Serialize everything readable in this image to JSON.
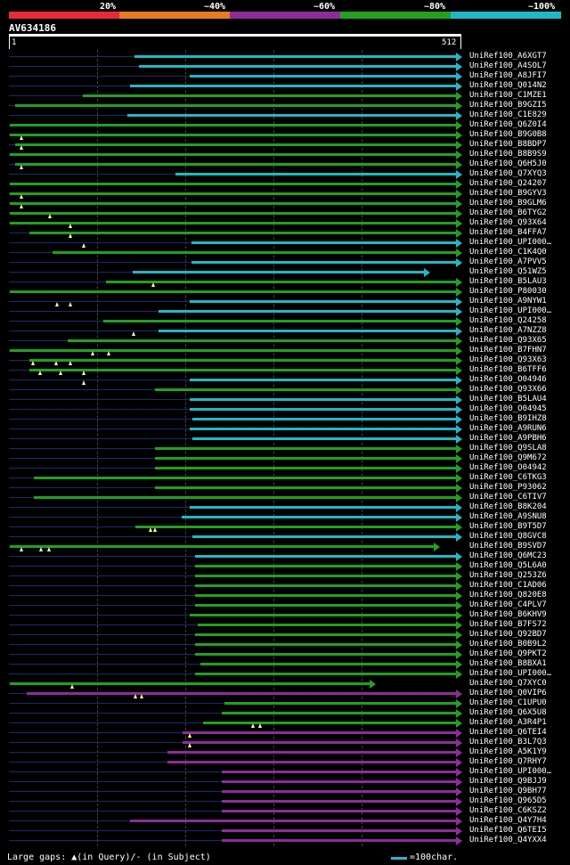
{
  "legend": {
    "labels": [
      "20%",
      "~40%",
      "~60%",
      "~80%",
      "~100%"
    ],
    "colors": [
      "#e8283c",
      "#e67a1e",
      "#8e2c9a",
      "#22a020",
      "#20b8c8"
    ]
  },
  "query": {
    "id": "AV634186",
    "start": "1",
    "end": "512",
    "length": 512
  },
  "footer": {
    "gaps": "Large gaps: ▲(in Query)/- (in Subject)",
    "scale": "=100char."
  },
  "hits": [
    {
      "label": "UniRef100_A6XGT7",
      "color": "#20b8c8",
      "start": 145,
      "end": 512,
      "tris": []
    },
    {
      "label": "UniRef100_A4SOL7",
      "color": "#20b8c8",
      "start": 150,
      "end": 512,
      "tris": []
    },
    {
      "label": "UniRef100_A8JFI7",
      "color": "#20b8c8",
      "start": 208,
      "end": 512,
      "tris": []
    },
    {
      "label": "UniRef100_Q014N2",
      "color": "#20b8c8",
      "start": 139,
      "end": 512,
      "tris": []
    },
    {
      "label": "UniRef100_C1MZE1",
      "color": "#22a020",
      "start": 85,
      "end": 512,
      "tris": []
    },
    {
      "label": "UniRef100_B9GZI5",
      "color": "#22a020",
      "start": 8,
      "end": 512,
      "tris": []
    },
    {
      "label": "UniRef100_C1E829",
      "color": "#20b8c8",
      "start": 136,
      "end": 512,
      "tris": []
    },
    {
      "label": "UniRef100_Q6Z0I4",
      "color": "#22a020",
      "start": 2,
      "end": 512,
      "tris": []
    },
    {
      "label": "UniRef100_B9G0B8",
      "color": "#22a020",
      "start": 2,
      "end": 512,
      "tris": [
        15
      ]
    },
    {
      "label": "UniRef100_B8BDP7",
      "color": "#22a020",
      "start": 8,
      "end": 512,
      "tris": [
        15
      ]
    },
    {
      "label": "UniRef100_B8B9S9",
      "color": "#22a020",
      "start": 2,
      "end": 512,
      "tris": []
    },
    {
      "label": "UniRef100_Q6H5J0",
      "color": "#22a020",
      "start": 8,
      "end": 512,
      "tris": [
        15
      ]
    },
    {
      "label": "UniRef100_Q7XYQ3",
      "color": "#20b8c8",
      "start": 191,
      "end": 512,
      "tris": []
    },
    {
      "label": "UniRef100_Q24207",
      "color": "#22a020",
      "start": 2,
      "end": 512,
      "tris": []
    },
    {
      "label": "UniRef100_B9GYV3",
      "color": "#22a020",
      "start": 2,
      "end": 512,
      "tris": [
        15
      ]
    },
    {
      "label": "UniRef100_B9GLM6",
      "color": "#22a020",
      "start": 2,
      "end": 512,
      "tris": [
        15
      ]
    },
    {
      "label": "UniRef100_B6TYG2",
      "color": "#22a020",
      "start": 2,
      "end": 512,
      "tris": [
        48
      ]
    },
    {
      "label": "UniRef100_Q93X64",
      "color": "#22a020",
      "start": 2,
      "end": 512,
      "tris": [
        71
      ]
    },
    {
      "label": "UniRef100_B4FFA7",
      "color": "#22a020",
      "start": 24,
      "end": 512,
      "tris": [
        71
      ]
    },
    {
      "label": "UniRef100_UPI000…",
      "color": "#20b8c8",
      "start": 210,
      "end": 512,
      "tris": [
        87
      ]
    },
    {
      "label": "UniRef100_C1K4Q0",
      "color": "#22a020",
      "start": 51,
      "end": 512,
      "tris": []
    },
    {
      "label": "UniRef100_A7PVV5",
      "color": "#20b8c8",
      "start": 210,
      "end": 512,
      "tris": []
    },
    {
      "label": "UniRef100_Q51WZ5",
      "color": "#20b8c8",
      "start": 142,
      "end": 475,
      "tris": []
    },
    {
      "label": "UniRef100_B5LAU3",
      "color": "#22a020",
      "start": 112,
      "end": 512,
      "tris": [
        166
      ]
    },
    {
      "label": "UniRef100_P80030",
      "color": "#22a020",
      "start": 2,
      "end": 512,
      "tris": []
    },
    {
      "label": "UniRef100_A9NYW1",
      "color": "#20b8c8",
      "start": 208,
      "end": 512,
      "tris": [
        56,
        71
      ]
    },
    {
      "label": "UniRef100_UPI000…",
      "color": "#20b8c8",
      "start": 172,
      "end": 512,
      "tris": []
    },
    {
      "label": "UniRef100_Q24258",
      "color": "#22a020",
      "start": 109,
      "end": 512,
      "tris": []
    },
    {
      "label": "UniRef100_A7NZZ8",
      "color": "#20b8c8",
      "start": 172,
      "end": 512,
      "tris": [
        144
      ]
    },
    {
      "label": "UniRef100_Q93X65",
      "color": "#22a020",
      "start": 68,
      "end": 512,
      "tris": []
    },
    {
      "label": "UniRef100_B7FHN7",
      "color": "#22a020",
      "start": 2,
      "end": 512,
      "tris": [
        97,
        115
      ]
    },
    {
      "label": "UniRef100_Q93X63",
      "color": "#22a020",
      "start": 24,
      "end": 512,
      "tris": [
        28,
        55,
        71
      ]
    },
    {
      "label": "UniRef100_B6TFF6",
      "color": "#22a020",
      "start": 24,
      "end": 512,
      "tris": [
        37,
        60,
        86
      ]
    },
    {
      "label": "UniRef100_O04946",
      "color": "#20b8c8",
      "start": 208,
      "end": 512,
      "tris": [
        87
      ]
    },
    {
      "label": "UniRef100_Q93X66",
      "color": "#22a020",
      "start": 168,
      "end": 512,
      "tris": []
    },
    {
      "label": "UniRef100_B5LAU4",
      "color": "#20b8c8",
      "start": 208,
      "end": 512,
      "tris": []
    },
    {
      "label": "UniRef100_O04945",
      "color": "#20b8c8",
      "start": 208,
      "end": 512,
      "tris": []
    },
    {
      "label": "UniRef100_B9IHZ8",
      "color": "#20b8c8",
      "start": 211,
      "end": 512,
      "tris": []
    },
    {
      "label": "UniRef100_A9RUN6",
      "color": "#20b8c8",
      "start": 208,
      "end": 512,
      "tris": []
    },
    {
      "label": "UniRef100_A9PBH6",
      "color": "#20b8c8",
      "start": 211,
      "end": 512,
      "tris": []
    },
    {
      "label": "UniRef100_Q9SLA8",
      "color": "#22a020",
      "start": 168,
      "end": 512,
      "tris": []
    },
    {
      "label": "UniRef100_Q9M672",
      "color": "#22a020",
      "start": 168,
      "end": 512,
      "tris": []
    },
    {
      "label": "UniRef100_O04942",
      "color": "#22a020",
      "start": 168,
      "end": 512,
      "tris": []
    },
    {
      "label": "UniRef100_C6TKG3",
      "color": "#22a020",
      "start": 30,
      "end": 512,
      "tris": []
    },
    {
      "label": "UniRef100_P93062",
      "color": "#22a020",
      "start": 168,
      "end": 512,
      "tris": []
    },
    {
      "label": "UniRef100_C6TIV7",
      "color": "#22a020",
      "start": 30,
      "end": 512,
      "tris": []
    },
    {
      "label": "UniRef100_B8K204",
      "color": "#20b8c8",
      "start": 208,
      "end": 512,
      "tris": []
    },
    {
      "label": "UniRef100_A9SNU8",
      "color": "#20b8c8",
      "start": 198,
      "end": 512,
      "tris": []
    },
    {
      "label": "UniRef100_B9T5D7",
      "color": "#22a020",
      "start": 146,
      "end": 512,
      "tris": [
        163,
        168
      ]
    },
    {
      "label": "UniRef100_Q8GVC8",
      "color": "#20b8c8",
      "start": 211,
      "end": 512,
      "tris": []
    },
    {
      "label": "UniRef100_B9SVD7",
      "color": "#22a020",
      "start": 2,
      "end": 487,
      "tris": [
        15,
        38,
        47
      ]
    },
    {
      "label": "UniRef100_Q6MC23",
      "color": "#20b8c8",
      "start": 214,
      "end": 512,
      "tris": []
    },
    {
      "label": "UniRef100_Q5L6A0",
      "color": "#22a020",
      "start": 214,
      "end": 512,
      "tris": []
    },
    {
      "label": "UniRef100_Q253Z6",
      "color": "#22a020",
      "start": 214,
      "end": 512,
      "tris": []
    },
    {
      "label": "UniRef100_C1AD06",
      "color": "#22a020",
      "start": 214,
      "end": 512,
      "tris": []
    },
    {
      "label": "UniRef100_Q820E8",
      "color": "#22a020",
      "start": 214,
      "end": 512,
      "tris": []
    },
    {
      "label": "UniRef100_C4PLV7",
      "color": "#22a020",
      "start": 214,
      "end": 512,
      "tris": []
    },
    {
      "label": "UniRef100_B6KHV9",
      "color": "#22a020",
      "start": 208,
      "end": 512,
      "tris": []
    },
    {
      "label": "UniRef100_B7FS72",
      "color": "#22a020",
      "start": 217,
      "end": 512,
      "tris": []
    },
    {
      "label": "UniRef100_Q92BD7",
      "color": "#22a020",
      "start": 214,
      "end": 512,
      "tris": []
    },
    {
      "label": "UniRef100_B0B9L2",
      "color": "#22a020",
      "start": 214,
      "end": 512,
      "tris": []
    },
    {
      "label": "UniRef100_Q9PKT2",
      "color": "#22a020",
      "start": 214,
      "end": 512,
      "tris": []
    },
    {
      "label": "UniRef100_B8BXA1",
      "color": "#22a020",
      "start": 220,
      "end": 512,
      "tris": []
    },
    {
      "label": "UniRef100_UPI000…",
      "color": "#22a020",
      "start": 214,
      "end": 512,
      "tris": []
    },
    {
      "label": "UniRef100_Q7XYC0",
      "color": "#22a020",
      "start": 2,
      "end": 413,
      "tris": [
        73
      ]
    },
    {
      "label": "UniRef100_Q0VIP6",
      "color": "#8e2c9a",
      "start": 21,
      "end": 512,
      "tris": [
        146,
        153
      ]
    },
    {
      "label": "UniRef100_C1UPU0",
      "color": "#22a020",
      "start": 247,
      "end": 512,
      "tris": []
    },
    {
      "label": "UniRef100_Q6X5U8",
      "color": "#22a020",
      "start": 244,
      "end": 512,
      "tris": []
    },
    {
      "label": "UniRef100_A3R4P1",
      "color": "#22a020",
      "start": 223,
      "end": 512,
      "tris": [
        280,
        288
      ]
    },
    {
      "label": "UniRef100_Q6TEI4",
      "color": "#8e2c9a",
      "start": 200,
      "end": 512,
      "tris": [
        208
      ]
    },
    {
      "label": "UniRef100_B3L7Q3",
      "color": "#8e2c9a",
      "start": 200,
      "end": 512,
      "tris": [
        208
      ]
    },
    {
      "label": "UniRef100_A5K1Y9",
      "color": "#8e2c9a",
      "start": 182,
      "end": 512,
      "tris": []
    },
    {
      "label": "UniRef100_Q7RHY7",
      "color": "#8e2c9a",
      "start": 182,
      "end": 512,
      "tris": []
    },
    {
      "label": "UniRef100_UPI000…",
      "color": "#8e2c9a",
      "start": 244,
      "end": 512,
      "tris": []
    },
    {
      "label": "UniRef100_Q9BJJ9",
      "color": "#8e2c9a",
      "start": 244,
      "end": 512,
      "tris": []
    },
    {
      "label": "UniRef100_Q9BH77",
      "color": "#8e2c9a",
      "start": 244,
      "end": 512,
      "tris": []
    },
    {
      "label": "UniRef100_Q965D5",
      "color": "#8e2c9a",
      "start": 244,
      "end": 512,
      "tris": []
    },
    {
      "label": "UniRef100_C6KSZ2",
      "color": "#8e2c9a",
      "start": 244,
      "end": 512,
      "tris": []
    },
    {
      "label": "UniRef100_Q4Y7H4",
      "color": "#8e2c9a",
      "start": 139,
      "end": 512,
      "tris": []
    },
    {
      "label": "UniRef100_Q6TEI5",
      "color": "#8e2c9a",
      "start": 244,
      "end": 512,
      "tris": []
    },
    {
      "label": "UniRef100_Q4YXX4",
      "color": "#8e2c9a",
      "start": 244,
      "end": 512,
      "tris": []
    }
  ]
}
